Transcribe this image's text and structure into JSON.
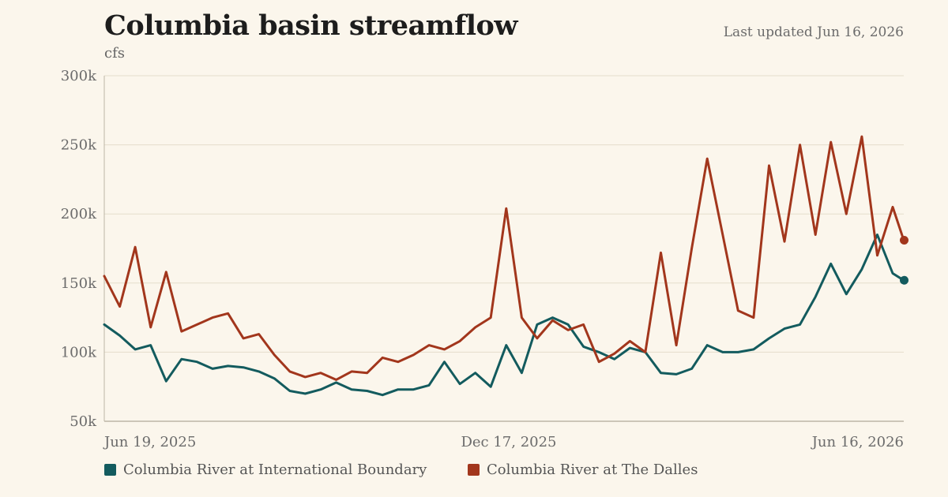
{
  "header": {
    "title": "Columbia basin streamflow",
    "subtitle": "cfs",
    "updated": "Last updated Jun 16, 2026"
  },
  "colors": {
    "background": "#fbf6ec",
    "grid": "#e4ddcc",
    "axis": "#bdb6a6",
    "tick_text": "#6b6b6b",
    "series_a": "#135b5e",
    "series_b": "#a2361c"
  },
  "chart_data": {
    "type": "line",
    "x_tick_labels": [
      "Jun 19, 2025",
      "Dec 17, 2025",
      "Jun 16, 2026"
    ],
    "y_tick_labels": [
      "50k",
      "100k",
      "150k",
      "200k",
      "250k",
      "300k"
    ],
    "y_ticks": [
      50000,
      100000,
      150000,
      200000,
      250000,
      300000
    ],
    "ylim": [
      50000,
      300000
    ],
    "grid": true,
    "legend_position": "bottom-left",
    "x_start": "2025-06-19",
    "x_end": "2026-06-16",
    "series": [
      {
        "name": "Columbia River at International Boundary",
        "color": "#135b5e",
        "dates": [
          "2025-06-19",
          "2025-06-26",
          "2025-07-03",
          "2025-07-10",
          "2025-07-17",
          "2025-07-24",
          "2025-07-31",
          "2025-08-07",
          "2025-08-14",
          "2025-08-21",
          "2025-08-28",
          "2025-09-04",
          "2025-09-11",
          "2025-09-18",
          "2025-09-25",
          "2025-10-02",
          "2025-10-09",
          "2025-10-16",
          "2025-10-23",
          "2025-10-30",
          "2025-11-06",
          "2025-11-13",
          "2025-11-20",
          "2025-11-27",
          "2025-12-04",
          "2025-12-11",
          "2025-12-18",
          "2025-12-25",
          "2026-01-01",
          "2026-01-08",
          "2026-01-15",
          "2026-01-22",
          "2026-01-29",
          "2026-02-05",
          "2026-02-12",
          "2026-02-19",
          "2026-02-26",
          "2026-03-05",
          "2026-03-12",
          "2026-03-19",
          "2026-03-26",
          "2026-04-02",
          "2026-04-09",
          "2026-04-16",
          "2026-04-23",
          "2026-04-30",
          "2026-05-07",
          "2026-05-14",
          "2026-05-21",
          "2026-05-28",
          "2026-06-04",
          "2026-06-11",
          "2026-06-16"
        ],
        "values": [
          120000,
          112000,
          102000,
          105000,
          79000,
          95000,
          93000,
          88000,
          90000,
          89000,
          86000,
          81000,
          72000,
          70000,
          73000,
          78000,
          73000,
          72000,
          69000,
          73000,
          73000,
          76000,
          93000,
          77000,
          85000,
          75000,
          105000,
          85000,
          120000,
          125000,
          120000,
          104000,
          100000,
          95000,
          103000,
          100000,
          85000,
          84000,
          88000,
          105000,
          100000,
          100000,
          102000,
          110000,
          117000,
          120000,
          140000,
          164000,
          142000,
          160000,
          185000,
          157000,
          152000
        ]
      },
      {
        "name": "Columbia River at The Dalles",
        "color": "#a2361c",
        "dates": [
          "2025-06-19",
          "2025-06-26",
          "2025-07-03",
          "2025-07-10",
          "2025-07-17",
          "2025-07-24",
          "2025-07-31",
          "2025-08-07",
          "2025-08-14",
          "2025-08-21",
          "2025-08-28",
          "2025-09-04",
          "2025-09-11",
          "2025-09-18",
          "2025-09-25",
          "2025-10-02",
          "2025-10-09",
          "2025-10-16",
          "2025-10-23",
          "2025-10-30",
          "2025-11-06",
          "2025-11-13",
          "2025-11-20",
          "2025-11-27",
          "2025-12-04",
          "2025-12-11",
          "2025-12-18",
          "2025-12-25",
          "2026-01-01",
          "2026-01-08",
          "2026-01-15",
          "2026-01-22",
          "2026-01-29",
          "2026-02-05",
          "2026-02-12",
          "2026-02-19",
          "2026-02-26",
          "2026-03-05",
          "2026-03-12",
          "2026-03-19",
          "2026-03-26",
          "2026-04-02",
          "2026-04-09",
          "2026-04-16",
          "2026-04-23",
          "2026-04-30",
          "2026-05-07",
          "2026-05-14",
          "2026-05-21",
          "2026-05-28",
          "2026-06-04",
          "2026-06-11",
          "2026-06-16"
        ],
        "values": [
          155000,
          133000,
          176000,
          118000,
          158000,
          115000,
          120000,
          125000,
          128000,
          110000,
          113000,
          98000,
          86000,
          82000,
          85000,
          80000,
          86000,
          85000,
          96000,
          93000,
          98000,
          105000,
          102000,
          108000,
          118000,
          125000,
          204000,
          125000,
          110000,
          123000,
          116000,
          120000,
          93000,
          99000,
          108000,
          100000,
          172000,
          105000,
          175000,
          240000,
          185000,
          130000,
          125000,
          235000,
          180000,
          250000,
          185000,
          252000,
          200000,
          256000,
          170000,
          205000,
          181000
        ]
      }
    ]
  },
  "legend": {
    "items": [
      {
        "label": "Columbia River at International Boundary",
        "color": "#135b5e"
      },
      {
        "label": "Columbia River at The Dalles",
        "color": "#a2361c"
      }
    ]
  }
}
